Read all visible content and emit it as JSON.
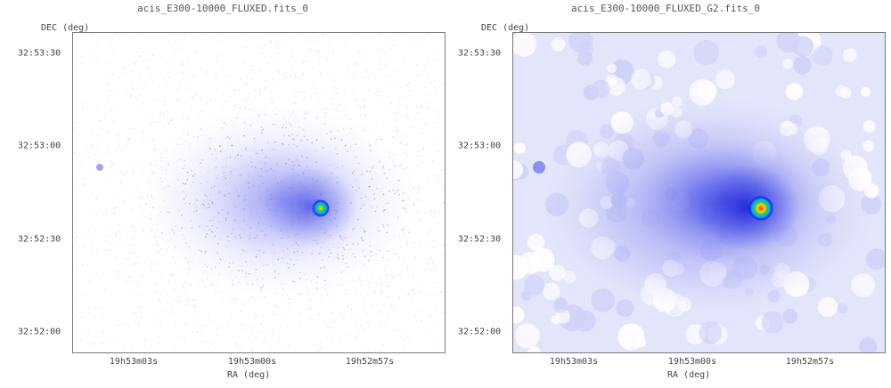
{
  "panels": [
    {
      "title": "acis_E300-10000_FLUXED.fits_0",
      "ylabel": "DEC (deg)",
      "xlabel": "RA (deg)",
      "yticks": [
        "32:53:30",
        "32:53:00",
        "32:52:30",
        "32:52:00"
      ],
      "xticks": [
        "19h53m03s",
        "19h53m00s",
        "19h52m57s"
      ],
      "style": "raw"
    },
    {
      "title": "acis_E300-10000_FLUXED_G2.fits_0",
      "ylabel": "DEC (deg)",
      "xlabel": "RA (deg)",
      "yticks": [
        "32:53:30",
        "32:53:00",
        "32:52:30",
        "32:52:00"
      ],
      "xticks": [
        "19h53m03s",
        "19h53m00s",
        "19h52m57s"
      ],
      "style": "smoothed"
    }
  ],
  "colors": {
    "faint": "#e6e8fb",
    "mid": "#8a8ef0",
    "deep": "#2a32e0",
    "core_hot": "#ff1a00",
    "core_warm": "#ffd800",
    "core_green": "#28c850",
    "core_cyan": "#00c8ff",
    "frame": "#7a7a7a"
  }
}
